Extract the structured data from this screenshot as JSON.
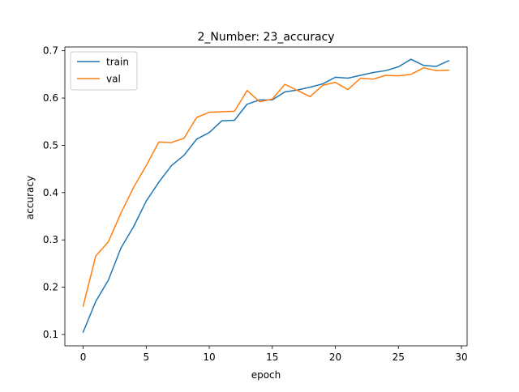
{
  "chart_data": {
    "type": "line",
    "title": "2_Number: 23_accuracy",
    "xlabel": "epoch",
    "ylabel": "accuracy",
    "xlim": [
      -1.45,
      30.45
    ],
    "ylim": [
      0.076,
      0.708
    ],
    "xticks": [
      0,
      5,
      10,
      15,
      20,
      25,
      30
    ],
    "xtick_labels": [
      "0",
      "5",
      "10",
      "15",
      "20",
      "25",
      "30"
    ],
    "yticks": [
      0.1,
      0.2,
      0.3,
      0.4,
      0.5,
      0.6,
      0.7
    ],
    "ytick_labels": [
      "0.1",
      "0.2",
      "0.3",
      "0.4",
      "0.5",
      "0.6",
      "0.7"
    ],
    "grid": false,
    "legend_position": "upper-left",
    "x": [
      0,
      1,
      2,
      3,
      4,
      5,
      6,
      7,
      8,
      9,
      10,
      11,
      12,
      13,
      14,
      15,
      16,
      17,
      18,
      19,
      20,
      21,
      22,
      23,
      24,
      25,
      26,
      27,
      28,
      29
    ],
    "series": [
      {
        "name": "train",
        "color": "#1f77b4",
        "values": [
          0.105,
          0.17,
          0.215,
          0.283,
          0.328,
          0.382,
          0.422,
          0.457,
          0.479,
          0.513,
          0.527,
          0.552,
          0.553,
          0.587,
          0.596,
          0.596,
          0.613,
          0.617,
          0.623,
          0.63,
          0.644,
          0.642,
          0.648,
          0.654,
          0.658,
          0.666,
          0.682,
          0.669,
          0.667,
          0.679
        ]
      },
      {
        "name": "val",
        "color": "#ff7f0e",
        "values": [
          0.16,
          0.266,
          0.296,
          0.357,
          0.411,
          0.457,
          0.507,
          0.506,
          0.515,
          0.559,
          0.57,
          0.571,
          0.572,
          0.616,
          0.592,
          0.598,
          0.629,
          0.616,
          0.603,
          0.627,
          0.633,
          0.618,
          0.642,
          0.64,
          0.648,
          0.647,
          0.65,
          0.664,
          0.658,
          0.659
        ]
      }
    ]
  }
}
